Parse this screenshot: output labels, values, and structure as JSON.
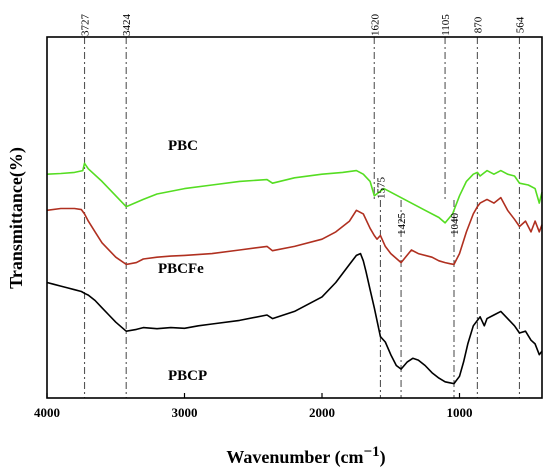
{
  "chart_data": {
    "type": "line",
    "xlabel": "Wavenumber (cm",
    "xlabel_sup": "−1",
    "xlabel_close": ")",
    "ylabel": "Transmittance(%)",
    "xlim": [
      4000,
      400
    ],
    "x_reversed": true,
    "x_ticks": [
      4000,
      3000,
      2000,
      1000
    ],
    "x_tick_labels": [
      "4000",
      "3000",
      "2000",
      "1000"
    ],
    "y_ticks": false,
    "grid": false,
    "peak_lines": [
      {
        "wavenumber": 3727,
        "label": "3727",
        "series": "all"
      },
      {
        "wavenumber": 3424,
        "label": "3424",
        "series": "all"
      },
      {
        "wavenumber": 1620,
        "label": "1620",
        "series": "top"
      },
      {
        "wavenumber": 1575,
        "label": "1575",
        "series": "lower"
      },
      {
        "wavenumber": 1425,
        "label": "1425",
        "series": "lower"
      },
      {
        "wavenumber": 1105,
        "label": "1105",
        "series": "top"
      },
      {
        "wavenumber": 1040,
        "label": "1040",
        "series": "lower"
      },
      {
        "wavenumber": 870,
        "label": "870",
        "series": "all"
      },
      {
        "wavenumber": 564,
        "label": "564",
        "series": "all"
      }
    ],
    "series": [
      {
        "name": "PBC",
        "color": "#55dd22",
        "x": [
          4000,
          3900,
          3800,
          3740,
          3727,
          3700,
          3600,
          3500,
          3424,
          3300,
          3200,
          3000,
          2800,
          2600,
          2400,
          2360,
          2200,
          2000,
          1850,
          1750,
          1700,
          1650,
          1620,
          1550,
          1400,
          1250,
          1150,
          1105,
          1050,
          1000,
          950,
          900,
          870,
          850,
          800,
          750,
          700,
          650,
          600,
          564,
          500,
          450,
          420,
          400
        ],
        "y": [
          62,
          62.2,
          62.5,
          63,
          65,
          63.5,
          60,
          56,
          53,
          55,
          56.5,
          58,
          59,
          60,
          60.5,
          59.5,
          61,
          62,
          62.5,
          63,
          62,
          60,
          56,
          58,
          55,
          52,
          50,
          48.5,
          51,
          56,
          60,
          62,
          62.5,
          61.5,
          63,
          62,
          63,
          62,
          61.5,
          59.5,
          59,
          58,
          54,
          57
        ]
      },
      {
        "name": "PBCFe",
        "color": "#b03020",
        "x": [
          4000,
          3900,
          3800,
          3750,
          3727,
          3700,
          3650,
          3600,
          3500,
          3424,
          3350,
          3300,
          3200,
          3100,
          3000,
          2800,
          2600,
          2400,
          2360,
          2200,
          2000,
          1900,
          1800,
          1750,
          1700,
          1650,
          1620,
          1600,
          1575,
          1540,
          1500,
          1425,
          1350,
          1300,
          1200,
          1150,
          1105,
          1070,
          1040,
          1000,
          950,
          900,
          870,
          850,
          800,
          750,
          700,
          650,
          600,
          564,
          520,
          480,
          450,
          420,
          400
        ],
        "y": [
          52,
          52.5,
          52.5,
          52.2,
          51,
          49,
          46,
          43,
          39,
          37,
          37.5,
          38.5,
          39,
          39.3,
          39.5,
          40,
          41,
          42,
          40.8,
          42,
          44,
          46,
          49,
          52,
          51,
          47,
          45,
          44,
          45,
          42,
          40,
          37.5,
          41,
          40,
          39,
          38,
          37.5,
          37.2,
          37,
          40,
          46,
          51,
          53,
          54,
          55,
          54,
          55.5,
          52,
          49.5,
          47.5,
          49,
          46,
          49,
          46,
          48
        ]
      },
      {
        "name": "PBCP",
        "color": "#000000",
        "x": [
          4000,
          3950,
          3900,
          3850,
          3800,
          3750,
          3727,
          3700,
          3650,
          3600,
          3550,
          3500,
          3424,
          3350,
          3300,
          3200,
          3100,
          3000,
          2900,
          2800,
          2600,
          2400,
          2360,
          2200,
          2000,
          1900,
          1800,
          1750,
          1720,
          1700,
          1680,
          1650,
          1620,
          1575,
          1540,
          1500,
          1460,
          1425,
          1380,
          1340,
          1300,
          1250,
          1200,
          1150,
          1105,
          1070,
          1040,
          1000,
          970,
          940,
          900,
          870,
          850,
          820,
          800,
          750,
          700,
          650,
          600,
          564,
          520,
          480,
          450,
          420,
          400
        ],
        "y": [
          32,
          31.5,
          31,
          30.5,
          30,
          29.5,
          29,
          28.5,
          27,
          25,
          23,
          21,
          18.5,
          19,
          19.5,
          19.2,
          19.5,
          19.3,
          20,
          20.5,
          21.5,
          23,
          22,
          24,
          28,
          32,
          37,
          39.5,
          40,
          38,
          35,
          30,
          25,
          17,
          15.5,
          12,
          9,
          8,
          10,
          11,
          10.5,
          9,
          7,
          5.5,
          4.5,
          4.2,
          4,
          6,
          10,
          15,
          20,
          21.5,
          22.5,
          20,
          22,
          23,
          24,
          22,
          20,
          18,
          18.5,
          16,
          15,
          12,
          13
        ]
      }
    ]
  }
}
